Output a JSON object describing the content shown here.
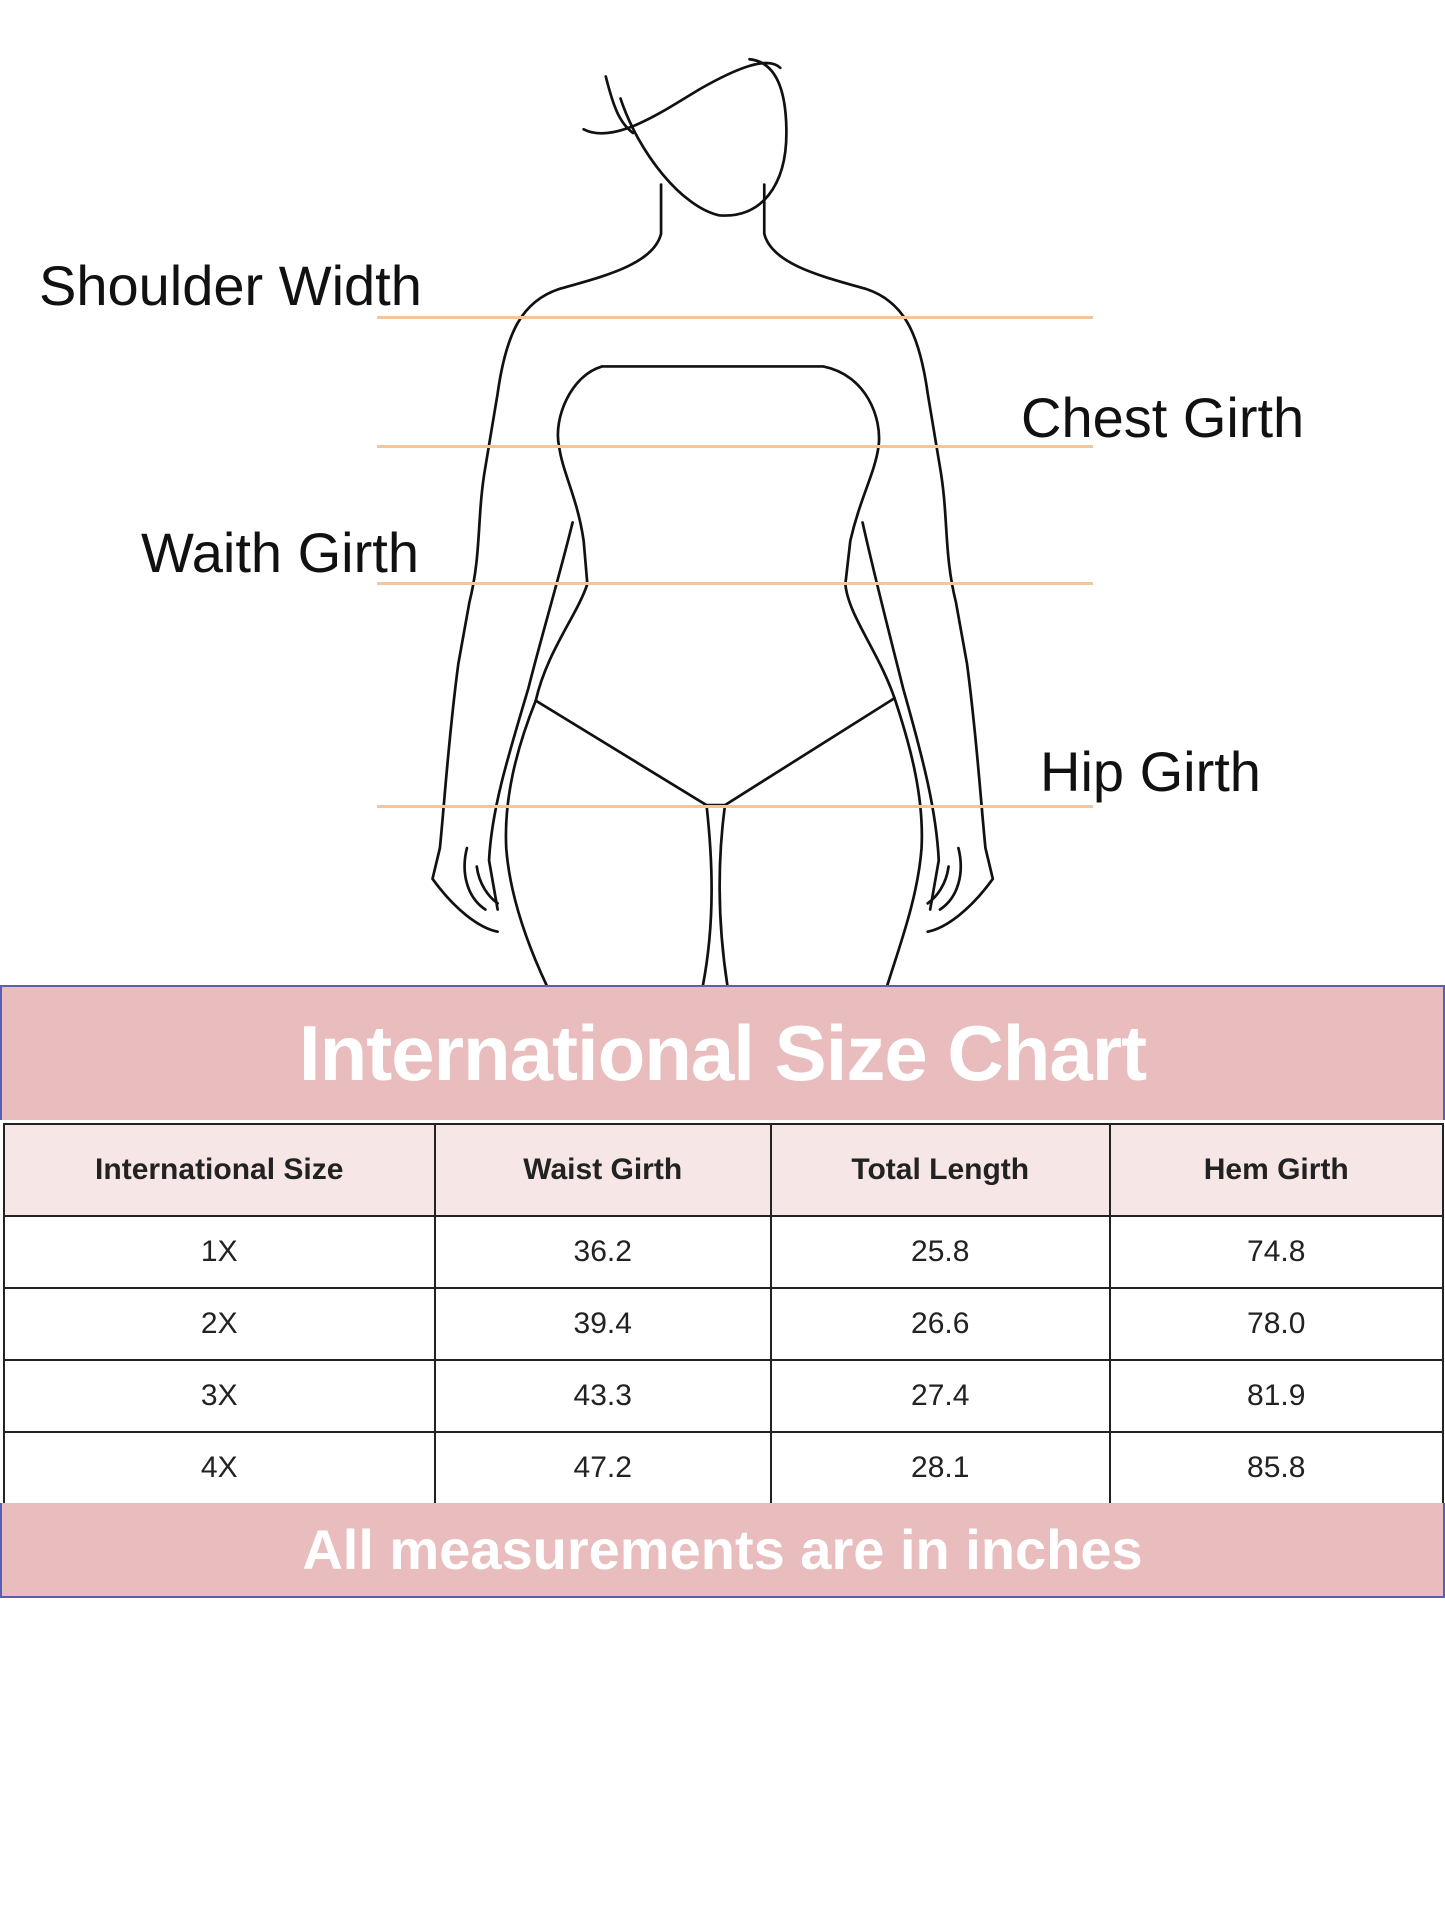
{
  "figure": {
    "labels": {
      "shoulder": "Shoulder Width",
      "chest": "Chest Girth",
      "waist": "Waith Girth",
      "hip": "Hip Girth"
    },
    "line_color": "#f0c69c"
  },
  "chart": {
    "title": "International Size Chart",
    "footer": "All measurements are in inches",
    "band_color": "#e9bcbd",
    "header_color": "#f6e6e6",
    "headers": [
      "International Size",
      "Waist Girth",
      "Total Length",
      "Hem Girth"
    ],
    "rows": [
      [
        "1X",
        "36.2",
        "25.8",
        "74.8"
      ],
      [
        "2X",
        "39.4",
        "26.6",
        "78.0"
      ],
      [
        "3X",
        "43.3",
        "27.4",
        "81.9"
      ],
      [
        "4X",
        "47.2",
        "28.1",
        "85.8"
      ]
    ]
  }
}
